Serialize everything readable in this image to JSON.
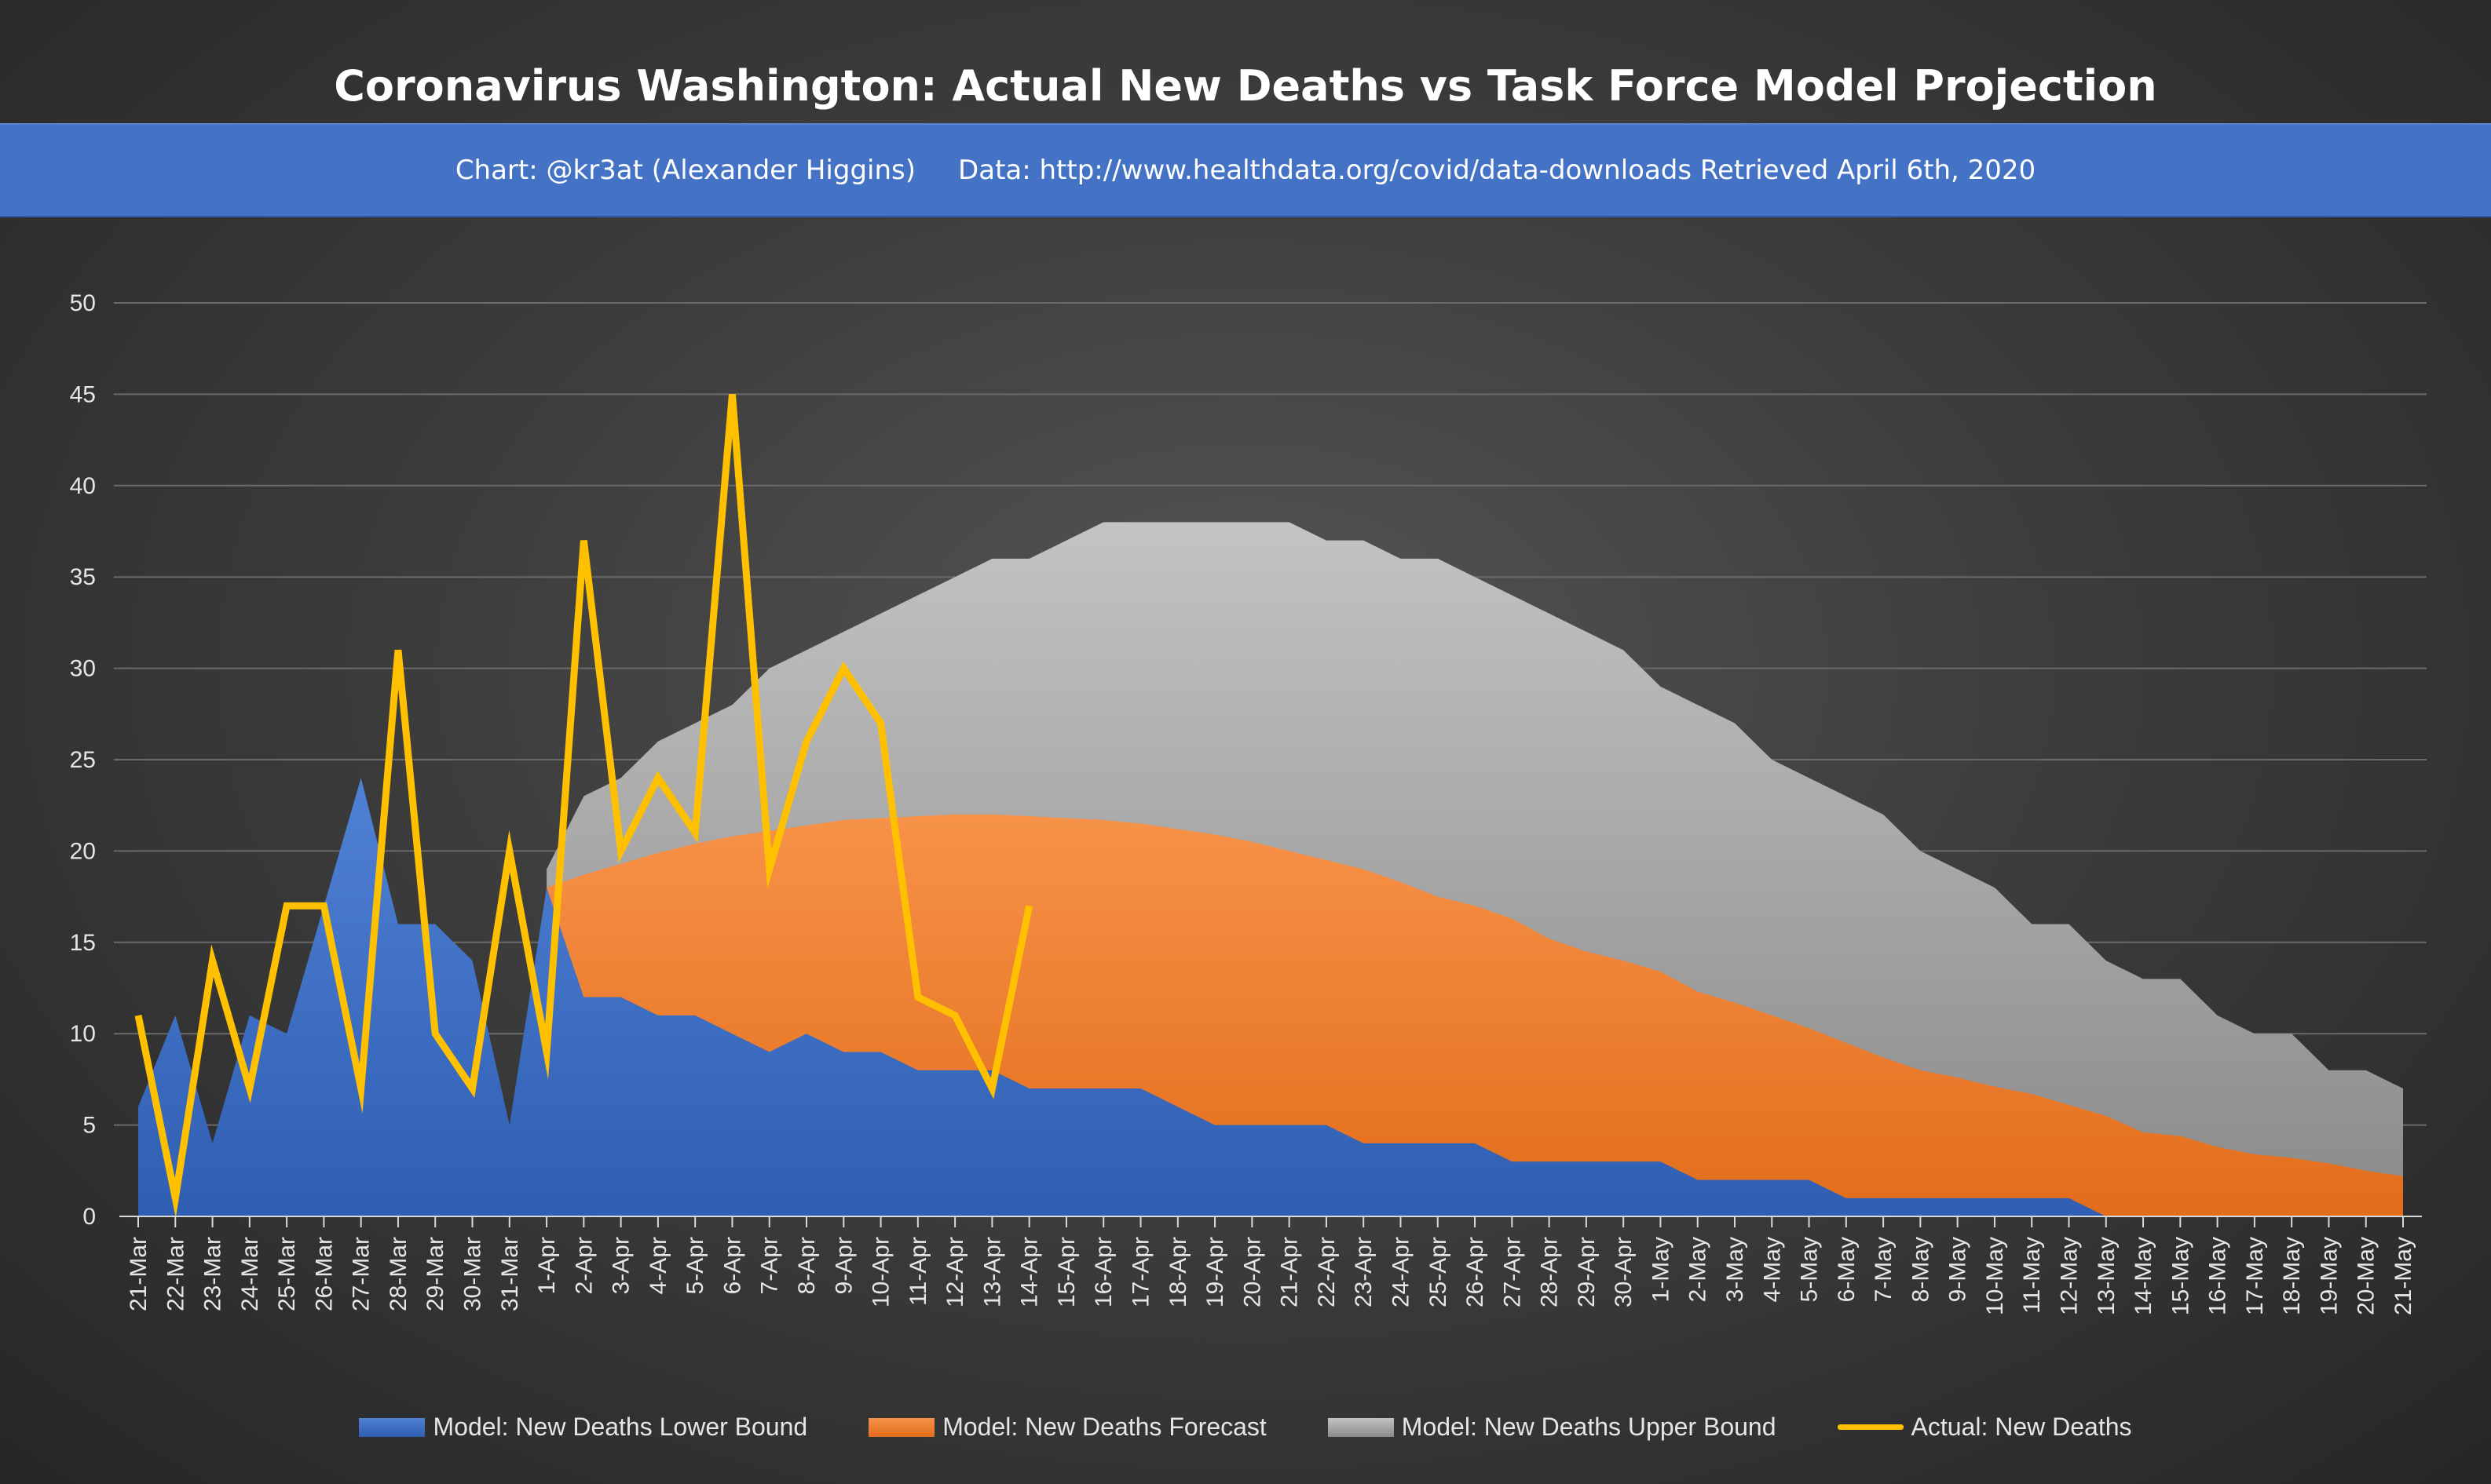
{
  "chart_data": {
    "type": "area",
    "title": "Coronavirus Washington: Actual New Deaths vs Task Force Model Projection",
    "subtitle": "Chart: @kr3at (Alexander Higgins)     Data: http://www.healthdata.org/covid/data-downloads Retrieved April 6th, 2020",
    "ylim": [
      0,
      50
    ],
    "yticks": [
      0,
      5,
      10,
      15,
      20,
      25,
      30,
      35,
      40,
      45,
      50
    ],
    "grid": true,
    "legend_position": "bottom",
    "categories": [
      "21-Mar",
      "22-Mar",
      "23-Mar",
      "24-Mar",
      "25-Mar",
      "26-Mar",
      "27-Mar",
      "28-Mar",
      "29-Mar",
      "30-Mar",
      "31-Mar",
      "1-Apr",
      "2-Apr",
      "3-Apr",
      "4-Apr",
      "5-Apr",
      "6-Apr",
      "7-Apr",
      "8-Apr",
      "9-Apr",
      "10-Apr",
      "11-Apr",
      "12-Apr",
      "13-Apr",
      "14-Apr",
      "15-Apr",
      "16-Apr",
      "17-Apr",
      "18-Apr",
      "19-Apr",
      "20-Apr",
      "21-Apr",
      "22-Apr",
      "23-Apr",
      "24-Apr",
      "25-Apr",
      "26-Apr",
      "27-Apr",
      "28-Apr",
      "29-Apr",
      "30-Apr",
      "1-May",
      "2-May",
      "3-May",
      "4-May",
      "5-May",
      "6-May",
      "7-May",
      "8-May",
      "9-May",
      "10-May",
      "11-May",
      "12-May",
      "13-May",
      "14-May",
      "15-May",
      "16-May",
      "17-May",
      "18-May",
      "19-May",
      "20-May",
      "21-May"
    ],
    "series": [
      {
        "name": "Model: New Deaths Upper Bound",
        "type": "area",
        "color": "#a6a6a6",
        "values": [
          null,
          null,
          null,
          null,
          null,
          null,
          null,
          null,
          null,
          null,
          null,
          19,
          23,
          24,
          26,
          27,
          28,
          30,
          31,
          32,
          33,
          34,
          35,
          36,
          36,
          37,
          38,
          38,
          38,
          38,
          38,
          38,
          37,
          37,
          36,
          36,
          35,
          34,
          33,
          32,
          31,
          29,
          28,
          27,
          25,
          24,
          23,
          22,
          20,
          19,
          18,
          16,
          16,
          14,
          13,
          13,
          11,
          10,
          10,
          8,
          8,
          7
        ]
      },
      {
        "name": "Model: New Deaths Forecast",
        "type": "area",
        "color": "#ed7d31",
        "values": [
          null,
          null,
          null,
          null,
          null,
          null,
          null,
          null,
          null,
          null,
          null,
          18,
          18.7,
          19.3,
          19.9,
          20.4,
          20.8,
          21.1,
          21.4,
          21.7,
          21.8,
          21.9,
          22,
          22,
          21.9,
          21.8,
          21.7,
          21.5,
          21.2,
          20.9,
          20.5,
          20,
          19.5,
          19,
          18.3,
          17.5,
          17,
          16.3,
          15.2,
          14.5,
          14,
          13.4,
          12.3,
          11.7,
          11,
          10.3,
          9.5,
          8.7,
          8,
          7.6,
          7.1,
          6.7,
          6.1,
          5.5,
          4.6,
          4.4,
          3.8,
          3.4,
          3.2,
          2.9,
          2.5,
          2.2
        ]
      },
      {
        "name": "Model: New Deaths Lower Bound",
        "type": "area",
        "color": "#4472c4",
        "values": [
          6,
          11,
          4,
          11,
          10,
          17,
          24,
          16,
          16,
          14,
          5,
          18,
          12,
          12,
          11,
          11,
          10,
          9,
          10,
          9,
          9,
          8,
          8,
          8,
          7,
          7,
          7,
          7,
          6,
          5,
          5,
          5,
          5,
          4,
          4,
          4,
          4,
          3,
          3,
          3,
          3,
          3,
          2,
          2,
          2,
          2,
          1,
          1,
          1,
          1,
          1,
          1,
          1,
          0,
          0,
          0,
          0,
          0,
          0,
          0,
          0,
          0
        ]
      },
      {
        "name": "Actual: New Deaths",
        "type": "line",
        "color": "#ffc000",
        "values": [
          11,
          1,
          14,
          7,
          17,
          17,
          7,
          31,
          10,
          7,
          20,
          9,
          37,
          20,
          24,
          21,
          45,
          19,
          26,
          30,
          27,
          12,
          11,
          7,
          17,
          null,
          null,
          null,
          null,
          null,
          null,
          null,
          null,
          null,
          null,
          null,
          null,
          null,
          null,
          null,
          null,
          null,
          null,
          null,
          null,
          null,
          null,
          null,
          null,
          null,
          null,
          null,
          null,
          null,
          null,
          null,
          null,
          null,
          null,
          null,
          null,
          null
        ]
      }
    ],
    "legend": [
      {
        "label": "Model: New Deaths Lower Bound",
        "color": "#4472c4",
        "kind": "area"
      },
      {
        "label": "Model: New Deaths Forecast",
        "color": "#ed7d31",
        "kind": "area"
      },
      {
        "label": "Model: New Deaths Upper Bound",
        "color": "#a6a6a6",
        "kind": "area"
      },
      {
        "label": "Actual: New Deaths",
        "color": "#ffc000",
        "kind": "line"
      }
    ]
  }
}
